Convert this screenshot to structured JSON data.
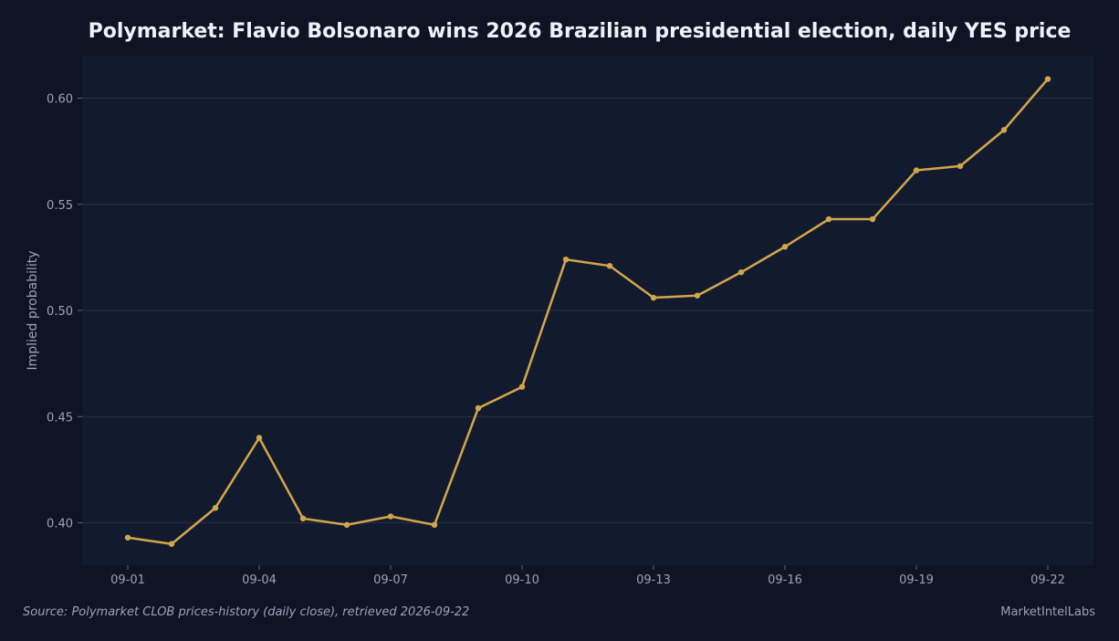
{
  "chart_data": {
    "type": "line",
    "title": "Polymarket: Flavio Bolsonaro wins 2026 Brazilian presidential election, daily YES price",
    "xlabel": "",
    "ylabel": "Implied probability",
    "x": [
      "09-01",
      "09-02",
      "09-03",
      "09-04",
      "09-05",
      "09-06",
      "09-07",
      "09-08",
      "09-09",
      "09-10",
      "09-11",
      "09-12",
      "09-13",
      "09-14",
      "09-15",
      "09-16",
      "09-17",
      "09-18",
      "09-19",
      "09-20",
      "09-21",
      "09-22"
    ],
    "xticks": [
      "09-01",
      "09-04",
      "09-07",
      "09-10",
      "09-13",
      "09-16",
      "09-19",
      "09-22"
    ],
    "yticks": [
      "0.40",
      "0.45",
      "0.50",
      "0.55",
      "0.60"
    ],
    "ylim": [
      0.38,
      0.62
    ],
    "series": [
      {
        "values": [
          0.393,
          0.39,
          0.407,
          0.44,
          0.402,
          0.399,
          0.403,
          0.399,
          0.454,
          0.464,
          0.524,
          0.521,
          0.506,
          0.507,
          0.518,
          0.53,
          0.543,
          0.543,
          0.566,
          0.568,
          0.585,
          0.609
        ],
        "color": "#d4a64b"
      }
    ],
    "grid": "horizontal",
    "legend": "none"
  },
  "footer": {
    "source": "Source: Polymarket CLOB prices-history (daily close), retrieved 2026-09-22",
    "brand": "MarketIntelLabs"
  },
  "colors": {
    "background": "#0f1424",
    "plot_background": "#121b2e",
    "grid": "#263043",
    "line": "#d4a64b",
    "text": "#9aa3b5",
    "title": "#eef1f7"
  }
}
